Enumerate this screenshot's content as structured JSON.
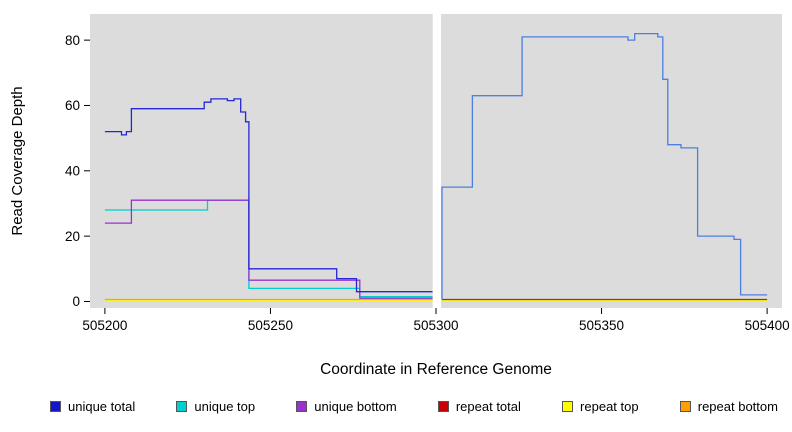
{
  "chart_data": {
    "type": "line",
    "step": "after",
    "title": "",
    "xlabel": "Coordinate in Reference Genome",
    "ylabel": "Read Coverage Depth",
    "xlim": [
      505195.5,
      505404.5
    ],
    "ylim": [
      -2,
      88
    ],
    "x_ticks": [
      505200,
      505250,
      505300,
      505350,
      505400
    ],
    "y_ticks": [
      0,
      20,
      40,
      60,
      80
    ],
    "panel_bg": "#dcdcdc",
    "outer_bg": "#ffffff",
    "grid": false,
    "gap": {
      "x0": 505299,
      "x1": 505301.5,
      "color": "#ffffff"
    },
    "series": [
      {
        "name": "repeat top",
        "color": "#ffff00",
        "points": [
          [
            505200,
            0.4
          ],
          [
            505299,
            0.4
          ]
        ]
      },
      {
        "name": "repeat top",
        "color": "#ffff00",
        "points": [
          [
            505301.8,
            0.4
          ],
          [
            505400,
            0.4
          ]
        ]
      },
      {
        "name": "repeat bottom",
        "color": "#ffa500",
        "points": [
          [
            505200,
            0.6
          ],
          [
            505299,
            0.6
          ]
        ]
      },
      {
        "name": "repeat total",
        "color": "#a22a2a",
        "points": [
          [
            505301.8,
            0.6
          ],
          [
            505400,
            0.6
          ]
        ]
      },
      {
        "name": "unique top",
        "color": "#00cdcd",
        "points": [
          [
            505200,
            28
          ],
          [
            505231,
            31
          ],
          [
            505243.5,
            4
          ],
          [
            505277,
            1.5
          ],
          [
            505299,
            1.5
          ]
        ]
      },
      {
        "name": "unique bottom",
        "color": "#9b30d0",
        "points": [
          [
            505200,
            24
          ],
          [
            505208,
            31
          ],
          [
            505243.5,
            6.5
          ],
          [
            505277,
            1
          ],
          [
            505299,
            1
          ]
        ]
      },
      {
        "name": "unique total",
        "color": "#2626d8",
        "points": [
          [
            505200,
            52
          ],
          [
            505205,
            51
          ],
          [
            505206.5,
            52
          ],
          [
            505208,
            59
          ],
          [
            505230,
            61
          ],
          [
            505232,
            62
          ],
          [
            505237,
            61.5
          ],
          [
            505239,
            62
          ],
          [
            505241,
            58
          ],
          [
            505242.5,
            55
          ],
          [
            505243.5,
            10
          ],
          [
            505270,
            7
          ],
          [
            505276,
            3
          ],
          [
            505299,
            3
          ]
        ]
      },
      {
        "name": "unique total",
        "color": "#4d7fe0",
        "points": [
          [
            505301.8,
            0.6
          ],
          [
            505301.8,
            35
          ],
          [
            505311,
            63
          ],
          [
            505326,
            81
          ],
          [
            505358,
            80
          ],
          [
            505360,
            82
          ],
          [
            505367,
            81
          ],
          [
            505368.5,
            68
          ],
          [
            505370,
            48
          ],
          [
            505374,
            47
          ],
          [
            505379,
            20
          ],
          [
            505390,
            19
          ],
          [
            505392,
            2
          ],
          [
            505400,
            2
          ]
        ]
      }
    ],
    "legend": [
      {
        "label": "unique total",
        "color": "#1515c8"
      },
      {
        "label": "unique top",
        "color": "#00d0d0"
      },
      {
        "label": "unique bottom",
        "color": "#9933cc"
      },
      {
        "label": "repeat total",
        "color": "#cc0000"
      },
      {
        "label": "repeat top",
        "color": "#ffff00"
      },
      {
        "label": "repeat bottom",
        "color": "#ffa000"
      }
    ]
  }
}
